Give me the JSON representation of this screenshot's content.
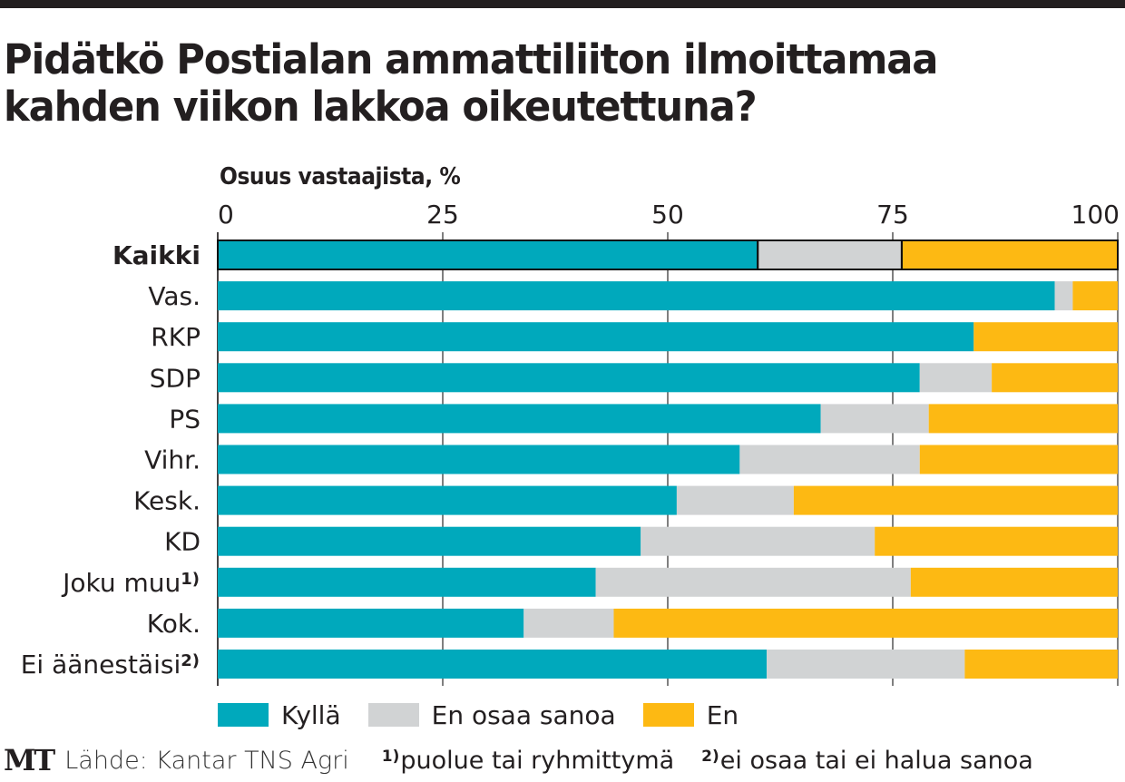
{
  "title": "Pidätkö Postialan ammattiliiton ilmoittamaa kahden viikon lakkoa oikeutettuna?",
  "colors": {
    "kylla": "#00A9BC",
    "en_osaa_sanoa": "#D1D3D4",
    "en": "#FDB913",
    "text": "#231f20"
  },
  "chart_data": {
    "type": "bar",
    "orientation": "horizontal",
    "stacked": true,
    "title": "Pidätkö Postialan ammattiliiton ilmoittamaa kahden viikon lakkoa oikeutettuna?",
    "xlabel": "Osuus vastaajista, %",
    "ylabel": "",
    "xlim": [
      0,
      100
    ],
    "xticks": [
      0,
      25,
      50,
      75,
      100
    ],
    "grid": true,
    "categories": [
      "Kaikki",
      "Vas.",
      "RKP",
      "SDP",
      "PS",
      "Vihr.",
      "Kesk.",
      "KD",
      "Joku muu",
      "Kok.",
      "Ei äänestäisi"
    ],
    "category_superscripts": [
      "",
      "",
      "",
      "",
      "",
      "",
      "",
      "",
      "1)",
      "",
      "2)"
    ],
    "highlighted_category": "Kaikki",
    "series": [
      {
        "name": "Kyllä",
        "color": "#00A9BC",
        "values": [
          60,
          93,
          84,
          78,
          67,
          58,
          51,
          47,
          42,
          34,
          61
        ]
      },
      {
        "name": "En osaa sanoa",
        "color": "#D1D3D4",
        "values": [
          16,
          2,
          0,
          8,
          12,
          20,
          13,
          26,
          35,
          10,
          22
        ]
      },
      {
        "name": "En",
        "color": "#FDB913",
        "values": [
          24,
          5,
          16,
          14,
          21,
          22,
          36,
          27,
          23,
          56,
          17
        ]
      }
    ],
    "legend": [
      "Kyllä",
      "En osaa sanoa",
      "En"
    ],
    "legend_position": "bottom"
  },
  "footer": {
    "logo": "MT",
    "source": "Lähde: Kantar TNS Agri",
    "notes": [
      {
        "marker": "1)",
        "text": "puolue tai ryhmittymä"
      },
      {
        "marker": "2)",
        "text": "ei osaa tai ei halua sanoa"
      }
    ]
  }
}
